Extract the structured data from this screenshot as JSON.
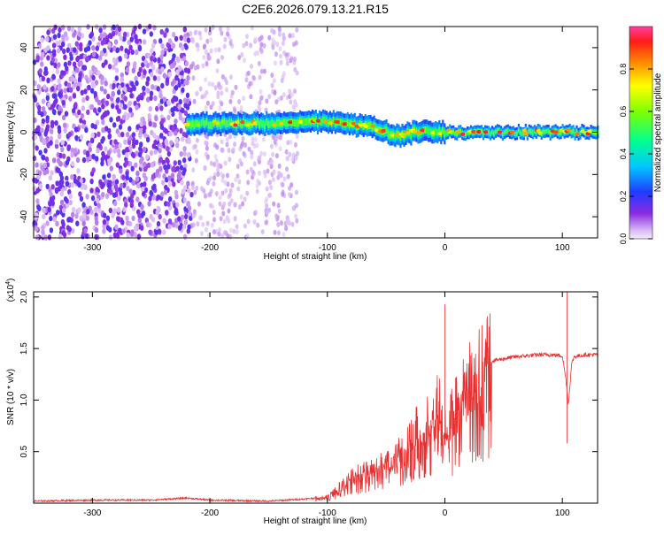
{
  "page_title": "C2E6.2026.079.13.21.R15",
  "colors": {
    "snr_line": "#e83030",
    "background": "#ffffff",
    "axis": "#000000"
  },
  "chart_data": [
    {
      "type": "heatmap",
      "title": "C2E6.2026.079.13.21.R15",
      "xlabel": "Height of straight line (km)",
      "ylabel": "Frequency (Hz)",
      "xlim": [
        -350,
        130
      ],
      "ylim": [
        -50,
        50
      ],
      "xticks": [
        -300,
        -200,
        -100,
        0,
        100
      ],
      "yticks": [
        -40,
        -20,
        0,
        20,
        40
      ],
      "colormap": "rainbow (white/violet low to red/magenta high)",
      "grid": false,
      "colorbar": {
        "label": "Normalized spectral amplitude",
        "range": [
          0,
          1
        ],
        "ticks": [
          "0.0",
          "0.2",
          "0.4",
          "0.6",
          "0.8"
        ],
        "tick_values": [
          0.0,
          0.2,
          0.4,
          0.6,
          0.8
        ]
      },
      "features": [
        {
          "region": "noise",
          "x_range": [
            -350,
            -215
          ],
          "freq_range": [
            -50,
            50
          ],
          "amplitude": 0.2
        },
        {
          "region": "sparse-noise",
          "x_range": [
            -215,
            -125
          ],
          "freq_range": [
            -50,
            50
          ],
          "amplitude": 0.05
        },
        {
          "region": "signal-band",
          "x_range": [
            -220,
            130
          ],
          "center_freq": [
            [
              -220,
              4
            ],
            [
              -150,
              4
            ],
            [
              -100,
              5
            ],
            [
              -60,
              2
            ],
            [
              -40,
              -2
            ],
            [
              -20,
              1
            ],
            [
              0,
              0
            ],
            [
              50,
              0
            ],
            [
              100,
              0
            ],
            [
              130,
              0
            ]
          ],
          "width_hz": 5,
          "amplitude": 0.6
        }
      ]
    },
    {
      "type": "line",
      "xlabel": "Height of straight line (km)",
      "ylabel": "SNR (10 * v/v)",
      "multiplier": "(x10",
      "multiplier_exp": "4",
      "multiplier_close": ")",
      "xlim": [
        -350,
        130
      ],
      "ylim": [
        0,
        2.05
      ],
      "xticks": [
        -300,
        -200,
        -100,
        0,
        100
      ],
      "yticks": [
        "0.5",
        "1.0",
        "1.5",
        "2.0"
      ],
      "ytick_values": [
        0.5,
        1.0,
        1.5,
        2.0
      ],
      "grid": false,
      "series": [
        {
          "color": "#e83030",
          "x": [
            -350,
            -300,
            -250,
            -220,
            -200,
            -150,
            -120,
            -100,
            -90,
            -80,
            -70,
            -60,
            -50,
            -40,
            -30,
            -20,
            -10,
            -5,
            0,
            2,
            5,
            10,
            20,
            30,
            40,
            50,
            60,
            70,
            80,
            90,
            100,
            103,
            105,
            108,
            110,
            120,
            130
          ],
          "values": [
            0.02,
            0.03,
            0.03,
            0.05,
            0.03,
            0.02,
            0.04,
            0.06,
            0.15,
            0.25,
            0.3,
            0.35,
            0.4,
            0.5,
            0.65,
            0.75,
            0.9,
            1.0,
            0.8,
            0.65,
            0.8,
            1.05,
            1.2,
            1.3,
            1.38,
            1.4,
            1.42,
            1.43,
            1.44,
            1.44,
            1.43,
            1.2,
            0.95,
            1.35,
            1.42,
            1.44,
            1.44
          ],
          "spikes": [
            {
              "x": 0,
              "y": 1.93
            },
            {
              "x": 104,
              "y": 2.05
            },
            {
              "x": 104,
              "y": 0.58
            }
          ]
        }
      ]
    }
  ]
}
